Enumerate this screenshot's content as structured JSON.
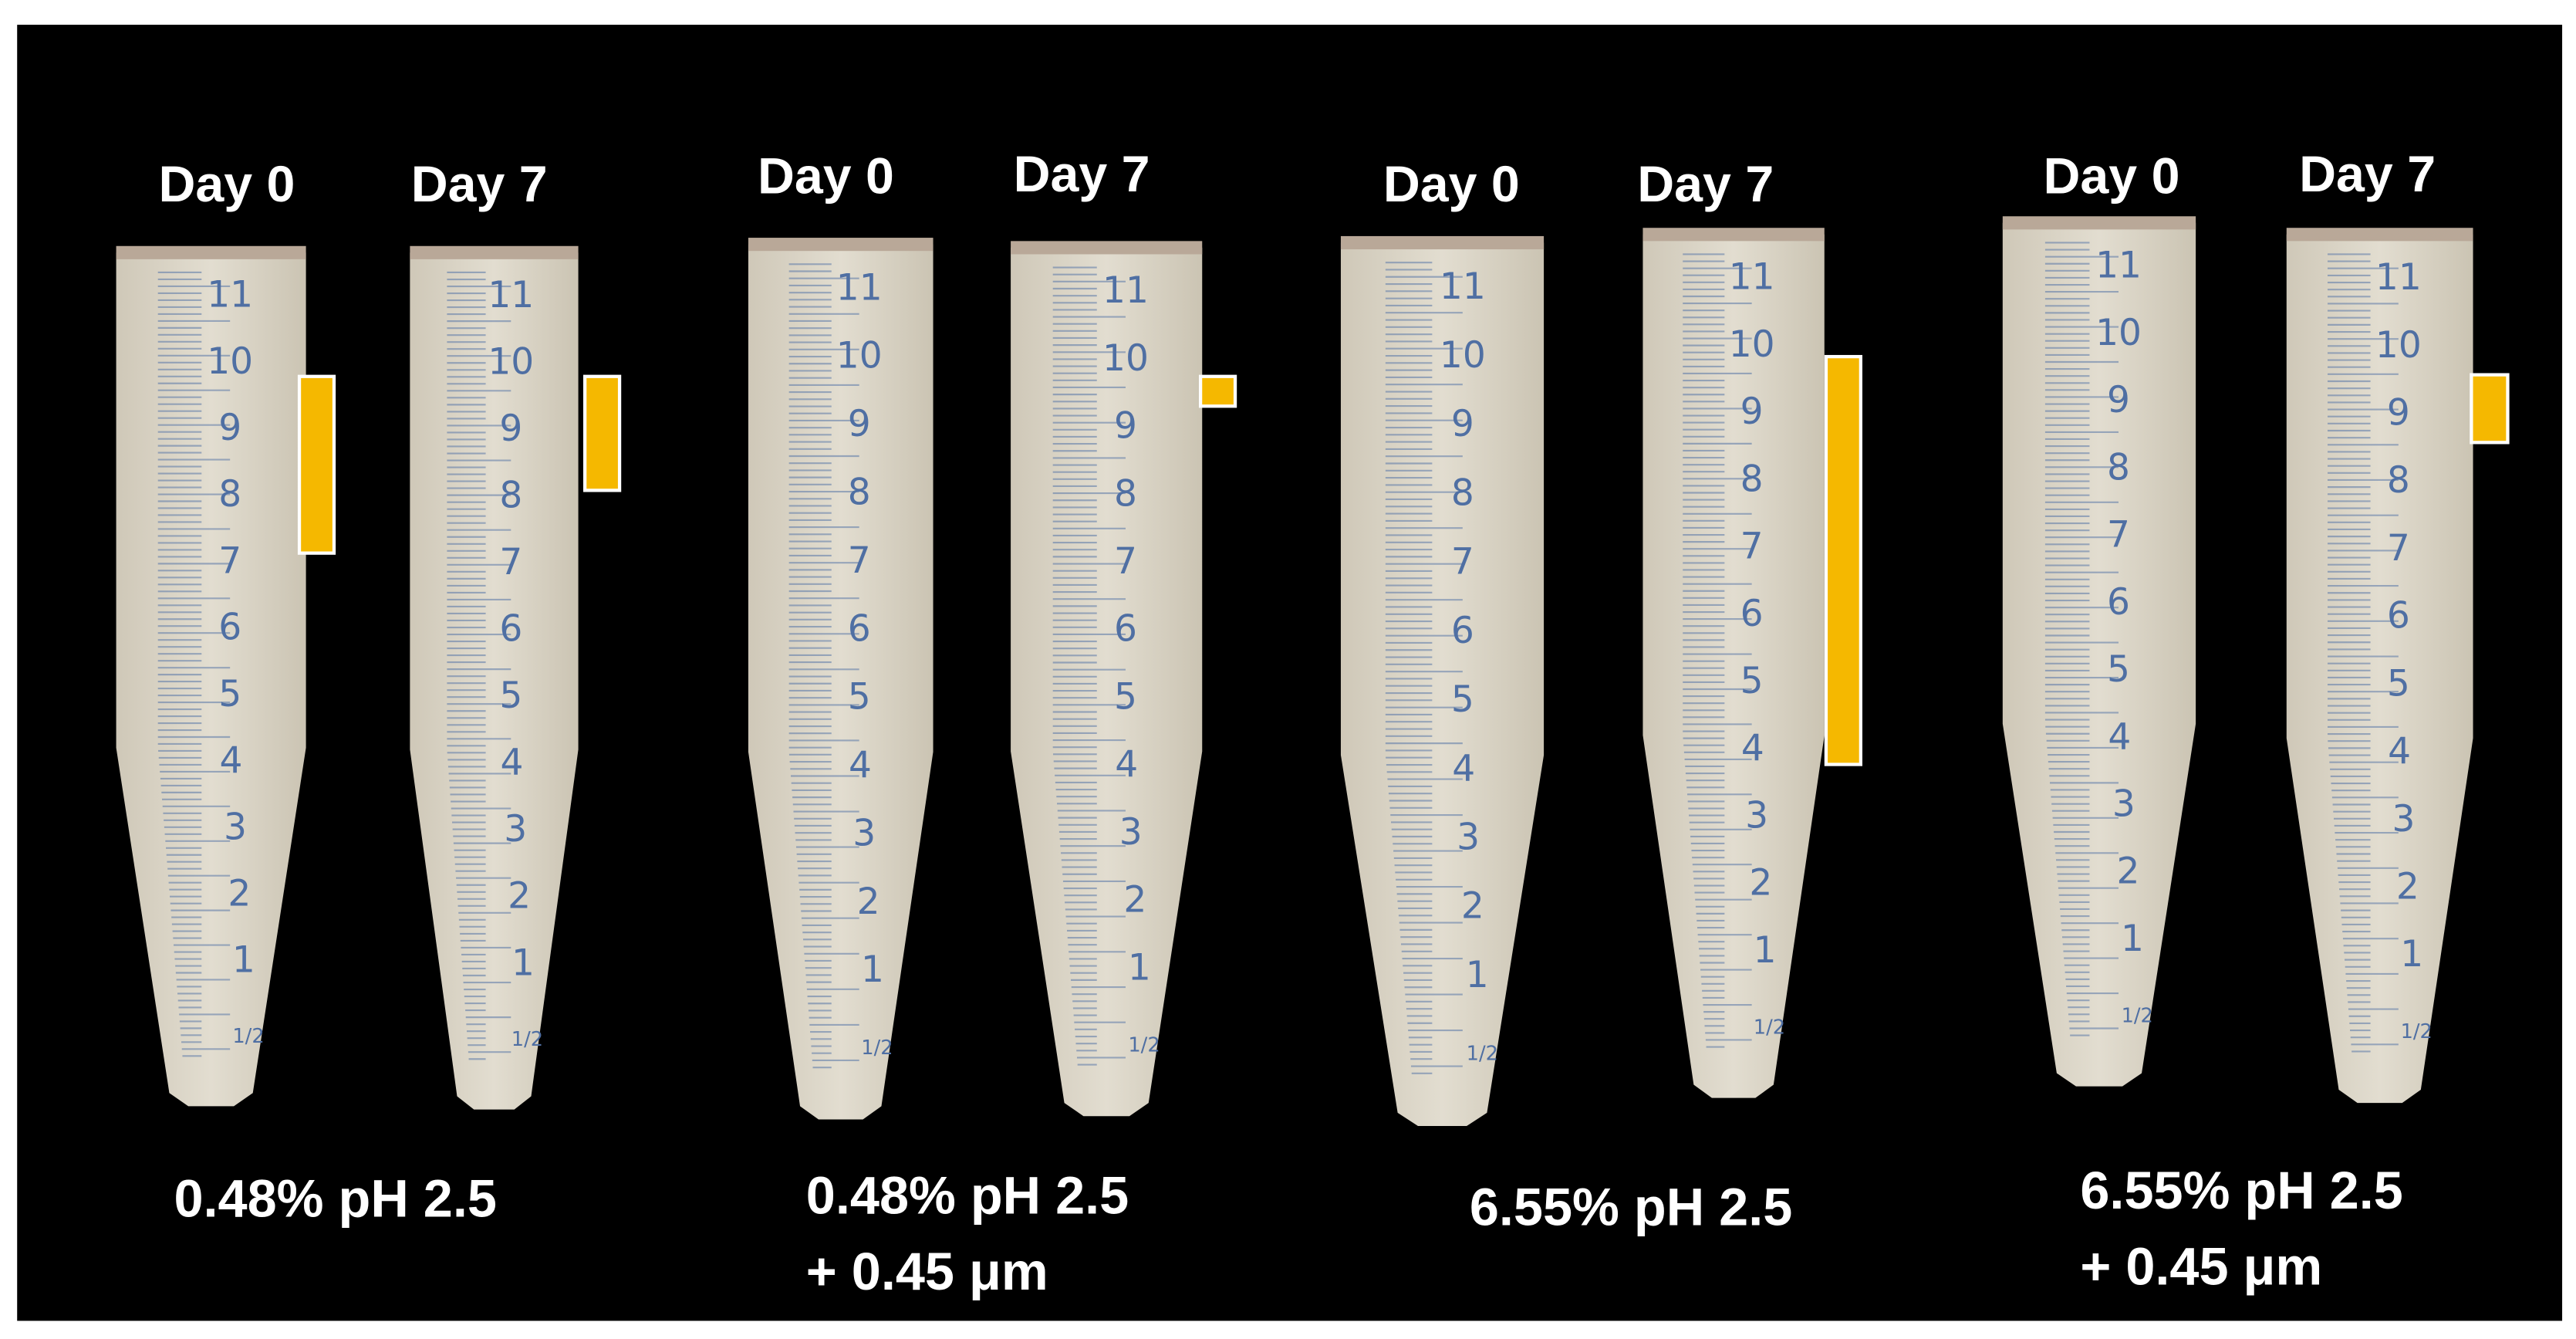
{
  "panels": [
    {
      "tubes": [
        {
          "label": "Day 0"
        },
        {
          "label": "Day 7"
        }
      ],
      "caption": [
        "0.48% pH 2.5"
      ]
    },
    {
      "tubes": [
        {
          "label": "Day 0"
        },
        {
          "label": "Day 7"
        }
      ],
      "caption": [
        "0.48% pH 2.5",
        "+ 0.45 μm"
      ]
    },
    {
      "tubes": [
        {
          "label": "Day 0"
        },
        {
          "label": "Day 7"
        }
      ],
      "caption": [
        "6.55% pH 2.5"
      ]
    },
    {
      "tubes": [
        {
          "label": "Day 0"
        },
        {
          "label": "Day 7"
        }
      ],
      "caption": [
        "6.55% pH 2.5",
        "+ 0.45 μm"
      ]
    }
  ],
  "graduations": [
    "11",
    "10",
    "9",
    "8",
    "7",
    "6",
    "5",
    "4",
    "3",
    "2",
    "1",
    "1/2"
  ]
}
